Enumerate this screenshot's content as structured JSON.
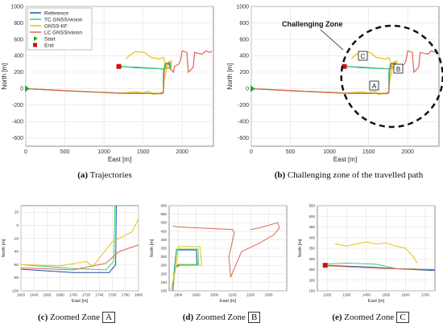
{
  "colors": {
    "reference": "#1f4fa8",
    "tc": "#2fd36b",
    "kf": "#e8c40a",
    "lc": "#e06455",
    "start": "#22aa22",
    "end": "#cc1111"
  },
  "main_panels": {
    "xlabel": "East [m]",
    "ylabel": "North [m]",
    "xlim": [
      0,
      2400
    ],
    "ylim": [
      -700,
      1000
    ],
    "xticks": [
      "0",
      "500",
      "1000",
      "1500",
      "2000"
    ],
    "yticks": [
      "-600",
      "-400",
      "-200",
      "0",
      "200",
      "400",
      "600",
      "800",
      "1000"
    ],
    "legend": [
      "Reference",
      "TC GNSS/vision",
      "GNSS-KF",
      "LC GNSS/vision",
      "Start",
      "End"
    ],
    "challenging_label": "Challenging Zone",
    "zone_markers": [
      "A",
      "B",
      "C"
    ]
  },
  "chart_data": [
    {
      "type": "line",
      "panel": "a",
      "xlabel": "East [m]",
      "ylabel": "North [m]",
      "xlim": [
        0,
        2400
      ],
      "ylim": [
        -700,
        1000
      ],
      "grid": true,
      "legend_position": "top-left",
      "series": [
        {
          "name": "Reference",
          "x": [
            0,
            600,
            1200,
            1740,
            1760,
            1760,
            1780,
            1840,
            1840,
            1780,
            1770,
            1200
          ],
          "y": [
            0,
            -30,
            -55,
            -60,
            -50,
            200,
            300,
            300,
            250,
            250,
            240,
            270
          ]
        },
        {
          "name": "TC GNSS/vision",
          "x": [
            0,
            600,
            1200,
            1500,
            1740,
            1760,
            1760,
            1780,
            1850,
            1850,
            1780,
            1770,
            1400,
            1200
          ],
          "y": [
            0,
            -28,
            -52,
            -58,
            -58,
            -48,
            200,
            310,
            310,
            250,
            250,
            240,
            255,
            275
          ]
        },
        {
          "name": "GNSS-KF",
          "x": [
            0,
            600,
            1200,
            1400,
            1500,
            1580,
            1620,
            1700,
            1760,
            1770,
            1820,
            1860,
            1860,
            1800,
            1780,
            1760,
            1720,
            1600,
            1520,
            1400,
            1320,
            1280
          ],
          "y": [
            0,
            -30,
            -55,
            -40,
            -50,
            -30,
            -70,
            -60,
            -40,
            100,
            320,
            340,
            250,
            260,
            320,
            380,
            360,
            380,
            440,
            450,
            400,
            360
          ]
        },
        {
          "name": "LC GNSS/vision",
          "x": [
            0,
            600,
            1200,
            1740,
            1760,
            1770,
            1790,
            1830,
            1840,
            1890,
            1900,
            1960,
            1980,
            2000,
            2060,
            2070,
            2080,
            2140,
            2160,
            2200,
            2260,
            2300,
            2360,
            2380
          ],
          "y": [
            0,
            -30,
            -55,
            -60,
            -40,
            200,
            300,
            320,
            250,
            200,
            270,
            300,
            350,
            460,
            440,
            300,
            200,
            260,
            440,
            430,
            420,
            460,
            440,
            460
          ]
        },
        {
          "name": "Start",
          "x": [
            0
          ],
          "y": [
            0
          ]
        },
        {
          "name": "End",
          "x": [
            1190
          ],
          "y": [
            270
          ]
        }
      ]
    },
    {
      "type": "line",
      "panel": "b",
      "xlabel": "East [m]",
      "ylabel": "North [m]",
      "xlim": [
        0,
        2400
      ],
      "ylim": [
        -700,
        1000
      ],
      "grid": true,
      "annotations": [
        "Challenging Zone",
        "A",
        "B",
        "C"
      ],
      "series_same_as": "a"
    },
    {
      "type": "line",
      "panel": "c",
      "xlabel": "East [m]",
      "ylabel": "North [m]",
      "xlim": [
        1620,
        1800
      ],
      "ylim": [
        -100,
        30
      ],
      "xticks": [
        1620,
        1640,
        1660,
        1680,
        1700,
        1720,
        1740,
        1760,
        1780,
        1800
      ],
      "yticks": [
        -100,
        -80,
        -60,
        -40,
        -20,
        0,
        20
      ],
      "series": [
        {
          "name": "Reference",
          "x": [
            1620,
            1700,
            1755,
            1765,
            1766
          ],
          "y": [
            -67,
            -72,
            -72,
            -60,
            30
          ]
        },
        {
          "name": "TC GNSS/vision",
          "x": [
            1620,
            1700,
            1750,
            1762,
            1764
          ],
          "y": [
            -60,
            -66,
            -68,
            -55,
            30
          ]
        },
        {
          "name": "GNSS-KF",
          "x": [
            1620,
            1680,
            1720,
            1730,
            1740,
            1760,
            1790,
            1800
          ],
          "y": [
            -60,
            -62,
            -55,
            -63,
            -50,
            -25,
            -10,
            10
          ]
        },
        {
          "name": "LC GNSS/vision",
          "x": [
            1620,
            1700,
            1750,
            1770,
            1800
          ],
          "y": [
            -65,
            -68,
            -58,
            -40,
            -30
          ]
        }
      ]
    },
    {
      "type": "line",
      "panel": "d",
      "xlabel": "East [m]",
      "ylabel": "North [m]",
      "xlim": [
        1750,
        2400
      ],
      "ylim": [
        100,
        600
      ],
      "xticks": [
        1800,
        1900,
        2000,
        2100,
        2200,
        2300
      ],
      "yticks": [
        100,
        150,
        200,
        250,
        300,
        350,
        400,
        450,
        500,
        550,
        600
      ],
      "series": [
        {
          "name": "Reference",
          "x": [
            1770,
            1780,
            1790,
            1900,
            1905,
            1800,
            1790
          ],
          "y": [
            100,
            240,
            340,
            340,
            250,
            250,
            240
          ]
        },
        {
          "name": "TC GNSS/vision",
          "x": [
            1772,
            1782,
            1792,
            1910,
            1912,
            1800,
            1790
          ],
          "y": [
            100,
            245,
            345,
            345,
            255,
            255,
            245
          ]
        },
        {
          "name": "GNSS-KF",
          "x": [
            1760,
            1790,
            1800,
            1920,
            1930,
            1810,
            1800
          ],
          "y": [
            100,
            250,
            360,
            360,
            250,
            250,
            240
          ]
        },
        {
          "name": "LC GNSS/vision",
          "x": [
            1770,
            1800,
            2100,
            2110,
            2080,
            2090,
            2150,
            2250,
            2330,
            2360,
            2350,
            2250,
            2200
          ],
          "y": [
            480,
            475,
            460,
            440,
            300,
            180,
            330,
            380,
            430,
            470,
            500,
            470,
            460
          ]
        }
      ]
    },
    {
      "type": "line",
      "panel": "e",
      "xlabel": "East [m]",
      "ylabel": "North [m]",
      "xlim": [
        1150,
        1750
      ],
      "ylim": [
        150,
        550
      ],
      "xticks": [
        1200,
        1300,
        1400,
        1500,
        1600,
        1700
      ],
      "yticks": [
        150,
        200,
        250,
        300,
        350,
        400,
        450,
        500,
        550
      ],
      "series": [
        {
          "name": "Reference",
          "x": [
            1190,
            1400,
            1600,
            1750
          ],
          "y": [
            270,
            262,
            252,
            245
          ]
        },
        {
          "name": "TC GNSS/vision",
          "x": [
            1190,
            1300,
            1450,
            1550,
            1750
          ],
          "y": [
            275,
            280,
            275,
            255,
            250
          ]
        },
        {
          "name": "GNSS-KF",
          "x": [
            1240,
            1300,
            1400,
            1450,
            1500,
            1550,
            1600,
            1640,
            1660
          ],
          "y": [
            370,
            360,
            380,
            370,
            375,
            360,
            350,
            310,
            280
          ]
        },
        {
          "name": "LC GNSS/vision",
          "x": [
            1190,
            1500,
            1750
          ],
          "y": [
            268,
            255,
            250
          ]
        },
        {
          "name": "End",
          "x": [
            1190
          ],
          "y": [
            270
          ]
        }
      ]
    }
  ],
  "captions": {
    "a": {
      "label": "(a)",
      "text": "Trajectories"
    },
    "b": {
      "label": "(b)",
      "text": "Challenging zone of the travelled path"
    },
    "c": {
      "label": "(c)",
      "text": "Zoomed Zone",
      "box": "A"
    },
    "d": {
      "label": "(d)",
      "text": "Zoomed Zone",
      "box": "B"
    },
    "e": {
      "label": "(e)",
      "text": "Zoomed Zone",
      "box": "C"
    }
  }
}
